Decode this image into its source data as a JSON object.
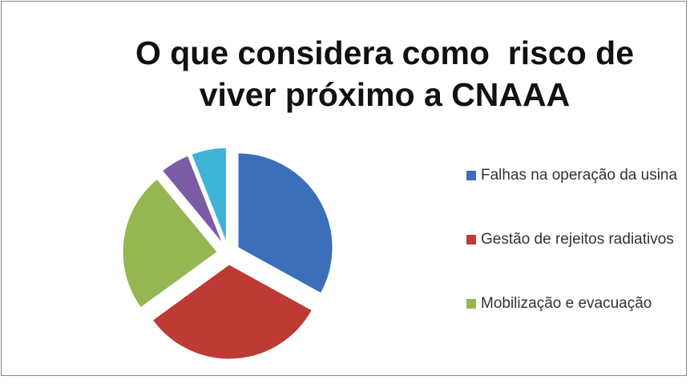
{
  "chart_data": {
    "type": "pie",
    "title": "O que considera como  risco de viver próximo a CNAAA",
    "categories": [
      "Falhas na operação da usina",
      "Gestão de rejeitos radiativos",
      "Mobilização e evacuação",
      null,
      null
    ],
    "values": [
      33,
      32,
      24,
      5,
      6
    ],
    "colors": [
      "#3b6fb9",
      "#bd3a35",
      "#95b651",
      "#7b5ba5",
      "#3db3d6"
    ],
    "legend": "right"
  }
}
